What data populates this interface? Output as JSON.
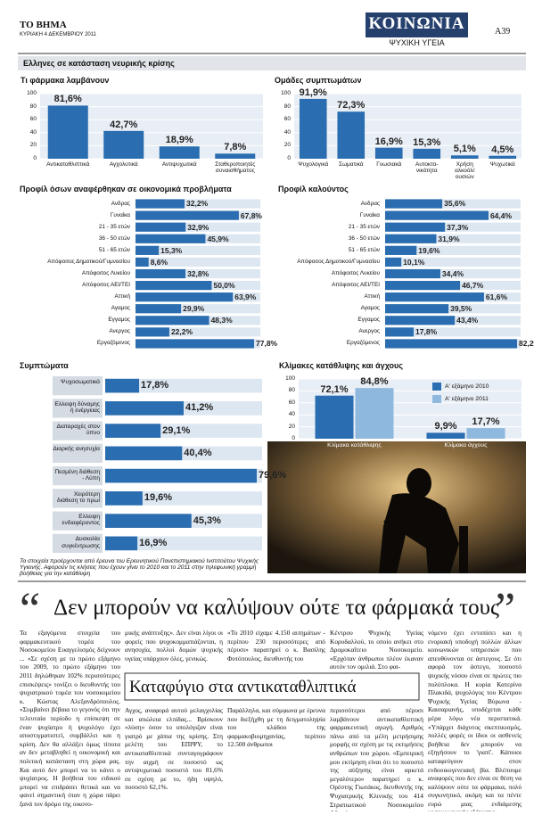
{
  "header": {
    "paper": "ΤΟ ΒΗΜΑ",
    "date": "ΚΥΡΙΑΚΗ 4 ΔΕΚΕΜΒΡΙΟΥ 2011",
    "section": "ΚΟΙΝΩΝΙΑ",
    "subsection": "ΨΥΧΙΚΗ ΥΓΕΙΑ",
    "page": "Α39"
  },
  "infographic": {
    "title": "Ελληνες σε κατάσταση νευρικής κρίσης",
    "source": "Τα στοιχεία προέρχονται από έρευνα του Ερευνητικού Πανεπιστημιακού Ινστιτούτου Ψυχικής Υγιεινής. Αφορούν τις κλήσεις που έχουν γίνει το 2010 και το 2011 στην τηλεφωνική γραμμή βοήθειας για την κατάθλιψη"
  },
  "chart_data": [
    {
      "type": "bar",
      "title": "Τι φάρμακα λαμβάνουν",
      "color": "#2a6db0",
      "categories": [
        "Αντικαταθλιπτικά",
        "Αγχολυτικά",
        "Αντιψυχωτικά",
        "Σταθεροποιητές συναισθήματος"
      ],
      "values": [
        81.6,
        42.7,
        18.9,
        7.8
      ],
      "value_labels": [
        "81,6%",
        "42,7%",
        "18,9%",
        "7,8%"
      ],
      "ylim": [
        0,
        100
      ],
      "yticks": [
        0,
        20,
        40,
        60,
        80,
        100
      ],
      "grid": true
    },
    {
      "type": "bar",
      "title": "Ομάδες συμπτωμάτων",
      "color": "#2a6db0",
      "categories": [
        "Ψυχολογικά",
        "Σωματικά",
        "Γνωσιακά",
        "Αυτοκτο-νικότητα",
        "Χρήση αλκοόλ/ ουσιών",
        "Ψυχωτικά"
      ],
      "values": [
        91.9,
        72.3,
        16.9,
        15.3,
        5.1,
        4.5
      ],
      "value_labels": [
        "91,9%",
        "72,3%",
        "16,9%",
        "15,3%",
        "5,1%",
        "4,5%"
      ],
      "ylim": [
        0,
        100
      ],
      "yticks": [
        0,
        20,
        40,
        60,
        80,
        100
      ],
      "grid": true
    },
    {
      "type": "hbar",
      "title": "Προφίλ όσων αναφέρθηκαν σε οικονομικά προβλήματα",
      "color": "#2a6db0",
      "categories": [
        "Ανδρας",
        "Γυναίκα",
        "21 - 35 ετών",
        "36 - 50 ετών",
        "51 - 65 ετών",
        "Απόφοιτος Δημοτικού/Γυμνασίου",
        "Απόφοιτος Λυκείου",
        "Απόφοιτος ΑΕΙ/ΤΕΙ",
        "Αττική",
        "Αγαμος",
        "Εγγαμος",
        "Ανεργος",
        "Εργαζόμενος"
      ],
      "values": [
        32.2,
        67.8,
        32.9,
        45.9,
        15.3,
        8.6,
        32.8,
        50.0,
        63.9,
        29.9,
        48.3,
        22.2,
        77.8
      ],
      "value_labels": [
        "32,2%",
        "67,8%",
        "32,9%",
        "45,9%",
        "15,3%",
        "8,6%",
        "32,8%",
        "50,0%",
        "63,9%",
        "29,9%",
        "48,3%",
        "22,2%",
        "77,8%"
      ]
    },
    {
      "type": "hbar",
      "title": "Προφίλ καλούντος",
      "color": "#2a6db0",
      "categories": [
        "Ανδρας",
        "Γυναίκα",
        "21 - 35 ετών",
        "36 - 50 ετών",
        "51 - 65 ετών",
        "Απόφοιτος Δημοτικού/Γυμνασίου",
        "Απόφοιτος Λυκείου",
        "Απόφοιτος ΑΕΙ/ΤΕΙ",
        "Αττική",
        "Αγαμος",
        "Εγγαμος",
        "Ανεργος",
        "Εργαζόμενος"
      ],
      "values": [
        35.6,
        64.4,
        37.3,
        31.9,
        19.6,
        10.1,
        34.4,
        46.7,
        61.6,
        39.5,
        43.4,
        17.8,
        82.2
      ],
      "value_labels": [
        "35,6%",
        "64,4%",
        "37,3%",
        "31,9%",
        "19,6%",
        "10,1%",
        "34,4%",
        "46,7%",
        "61,6%",
        "39,5%",
        "43,4%",
        "17,8%",
        "82,2%"
      ]
    },
    {
      "type": "hbar_boxed",
      "title": "Συμπτώματα",
      "color": "#2a6db0",
      "categories": [
        "Ψυχοσωματικά",
        "Ελλειψη δύναμης ή ενέργειας",
        "Διαταραχές στον ύπνο",
        "Διαρκής ανησυχία",
        "Πεσμένη διάθεση - Λύπη",
        "Χειρότερη διάθεση το πρωί",
        "Ελλειψη ενδιαφέροντος",
        "Δυσκολία συγκέντρωσης"
      ],
      "values": [
        17.8,
        41.2,
        29.1,
        40.4,
        79.6,
        19.6,
        45.3,
        16.9
      ],
      "value_labels": [
        "17,8%",
        "41,2%",
        "29,1%",
        "40,4%",
        "79,6%",
        "19,6%",
        "45,3%",
        "16,9%"
      ]
    },
    {
      "type": "grouped_bar",
      "title": "Κλίμακες κατάθλιψης και άγχους",
      "categories": [
        "Κλίμακα κατάθλιψης",
        "Κλίμακα άγχους"
      ],
      "series": [
        {
          "name": "Α' εξάμηνο 2010",
          "color": "#2a6db0",
          "values": [
            72.1,
            9.9
          ],
          "value_labels": [
            "72,1%",
            "9,9%"
          ]
        },
        {
          "name": "Α' εξάμηνο 2011",
          "color": "#8fb8de",
          "values": [
            84.8,
            17.7
          ],
          "value_labels": [
            "84,8%",
            "17,7%"
          ]
        }
      ],
      "ylim": [
        0,
        100
      ],
      "yticks": [
        0,
        20,
        40,
        60,
        80,
        100
      ],
      "grid": true,
      "legend": "upper right"
    }
  ],
  "article": {
    "headline": "Δεν μπορούν να καλύψουν ούτε τα φάρμακά τους",
    "columns": [
      "Τα εξαγόμενα στοιχεία του φαρμακευτικού τομέα του Νοσοκομείου Ευαγγελισμός δείχνουν ... «Σε σχέση με το πρώτο εξάμηνο του 2009, το πρώτο εξάμηνο του 2011 δηλώθηκαν 102% περισσότερες επισκέψεις» τονίζει ο διευθυντής του ψυχιατρικού τομέα του νοσοκομείου κ. Κώστας Αλεξανδρόπουλος. «Συμβαίνει βέβαια το γεγονός ότι την τελευταία περίοδο η επίσκεψη σε έναν ψυχίατρο ή ψυχολόγο έχει αποστιγματιστεί, συμβάλλει και η κρίση. Δεν θα αλλάξει όμως τίποτα αν δεν μεταβληθεί η οικονομική και πολιτική κατάσταση στη χώρα μας. Και αυτό δεν μπορεί να το κάνει ο ψυχίατρος. Η βοήθεια του ειδικού μπορεί να επιδράσει θετικά και να φανεί σημαντική όταν η χώρα πάρει ξανά τον δρόμο της οικονο-",
      "μικής ανάπτυξης». Δεν είναι λίγοι οι φορείς που ψυχοκομματιάζονται, η ανησυχία, πολλοί δομών ψυχικής υγείας υπάρχουν όλες, γενικώς.",
      "«Το 2010 είχαμε 4.150 αιτημάτων - περίπου 230 περισσότερες από πέρυσι» παρατηρεί ο κ. Βασίλης Φυτόπουλος, διευθυντής του",
      "Κέντρου Ψυχικής Υγείας Κορυδαλλού, το οποίο ανήκει στο Δρομοκαΐτειο Νοσοκομείο. «Ερχόταν άνθρωποι πλέον έκαναν αυτόν τον ομιλιά. Στο φαι-",
      "νόμενο έχει εντοπίσει και η ενοριακή υποδοχή πολλών άλλων κοινωνικών υπηρεσιών που απευθύνονται σε άστεγους. Σε ότι αφορά τον άστεγο, ποσοστό ψυχικής νόσου είναι σε πρώτες πιο πολύπλοκα. Η κυρία Κατερίνα Πλακιδά, ψυχολόγος του Κέντρου Ψυχικής Υγείας Βύρωνα - Καισαριανής, υποδέχεται κάθε μέρα λόγω νέα περιστατικά. «Υπάρχει διάχυτος σκεπτικισμός, πολλές φορές οι ίδιοι οι ασθενείς βοήθεια δεν μπορούν να εξηγήσουν το 'γιατί'. Κάποιοι καταφεύγουν στον ενδοοικογενειακή βία. Βλέπουμε αναφορές που δεν είναι σε θέση να καλύψουν ούτε τα φάρμακα, πολύ συγκινητικό, ακόμη και τα πέντε ευρώ μιας ενδιάμεσης νοσοκομειακής εξέτασης»."
    ],
    "sidebar_title": "Καταφύγιο στα αντικαταθλιπτικά",
    "sidebar_columns": [
      "Αγχος, αναφορά αυτού μελαγχολίας και απώλεια ελπίδας... Βρίσκουν «λύση» όσον το υπολόγιζαν είναι γιατρό με χάπια της κρίσης. Στη μελέτη του ΕΠΙΨΥ, το αντικαταθλιπτικά συνταγογράφουν την αιχμή σε ποσοστό ως αντιψυχωτικά ποσοστό του 81,6% σε σχέση με το, ήδη υψηλό, ποσοστό 62,1%.",
      "Παράλληλα, και σύμφωνα με έρευνα που διεξήχθη με τη δειγματοληψία του κλάδου της φαρμακοβιομηχανίας, περίπου 12.500 άνθρωποι",
      "περισσότεροι από πέρυσι λαμβάνουν αντικαταθλιπτική φαρμακευτική αγωγή. Αριθμός πάνω από τα μέλη μετρήσιμης μορφής σε σχέση με τις εκτιμήσεις ανθρώπων του χώρου. «Εμπειρική μου εκτίμηση είναι ότι το ποσοστό της αύξησης είναι αρκετά μεγαλύτερο» παρατηρεί ο κ. Ορέστης Γιωτάκος, διευθυντής της Ψυχιατρικής Κλινικής του 414 Στρατιωτικού Νοσοκομείου Αθηνών."
    ]
  }
}
